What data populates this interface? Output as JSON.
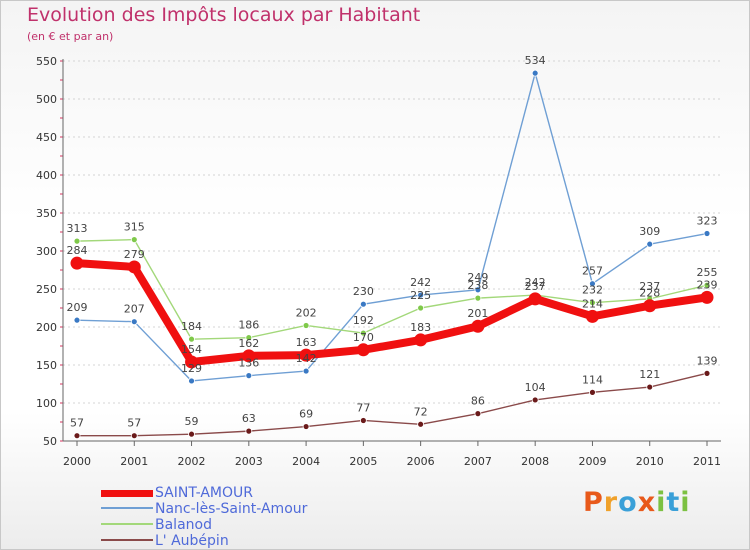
{
  "header": {
    "title": "Evolution des Impôts locaux par Habitant",
    "subtitle": "(en € et par an)"
  },
  "logo": {
    "text": "Proxiti",
    "colors": [
      "#e8591a",
      "#f0a12a",
      "#3aa0d8",
      "#e8591a",
      "#7cc142",
      "#3aa0d8",
      "#7cc142"
    ]
  },
  "chart_data": {
    "type": "line",
    "title": "Evolution des Impôts locaux par Habitant",
    "subtitle": "(en € et par an)",
    "x": [
      "2000",
      "2001",
      "2002",
      "2003",
      "2004",
      "2005",
      "2006",
      "2007",
      "2008",
      "2009",
      "2010",
      "2011"
    ],
    "ylim": [
      50,
      550
    ],
    "yticks": [
      50,
      100,
      150,
      200,
      250,
      300,
      350,
      400,
      450,
      500,
      550
    ],
    "grid": "horizontal dashed",
    "legend_position": "bottom-left",
    "series": [
      {
        "name": "Nanc-lès-Saint-Amour",
        "color": "#6f9fd4",
        "marker": "#3a79c4",
        "values": [
          209,
          207,
          129,
          136,
          142,
          230,
          242,
          249,
          534,
          257,
          309,
          323
        ],
        "labels": [
          "209",
          "207",
          "129",
          "136",
          "142",
          "230",
          "242",
          "249",
          "534",
          "257",
          "309",
          "323"
        ]
      },
      {
        "name": "Balanod",
        "color": "#a3d87a",
        "marker": "#7fc94a",
        "values": [
          313,
          315,
          184,
          186,
          202,
          192,
          225,
          238,
          242,
          232,
          237,
          255
        ],
        "labels": [
          "313",
          "315",
          "184",
          "186",
          "202",
          "192",
          "225",
          "238",
          "242",
          "232",
          "237",
          "255"
        ]
      },
      {
        "name": "L' Aubépin",
        "color": "#8a4a4a",
        "marker": "#6a1a1a",
        "values": [
          57,
          57,
          59,
          63,
          69,
          77,
          72,
          86,
          104,
          114,
          121,
          139
        ],
        "labels": [
          "57",
          "57",
          "59",
          "63",
          "69",
          "77",
          "72",
          "86",
          "104",
          "114",
          "121",
          "139"
        ]
      },
      {
        "name": "SAINT-AMOUR",
        "color": "#f01010",
        "marker": "#f01010",
        "values": [
          284,
          279,
          154,
          162,
          163,
          170,
          183,
          201,
          237,
          214,
          228,
          239
        ],
        "labels": [
          "284",
          "279",
          "154",
          "162",
          "163",
          "170",
          "183",
          "201",
          "237",
          "214",
          "228",
          "239"
        ]
      }
    ]
  },
  "legend": {
    "items": [
      {
        "label": "SAINT-AMOUR",
        "color": "#f01010",
        "weight": "thick"
      },
      {
        "label": "Nanc-lès-Saint-Amour",
        "color": "#6f9fd4",
        "weight": "thin"
      },
      {
        "label": "Balanod",
        "color": "#a3d87a",
        "weight": "thin"
      },
      {
        "label": "L' Aubépin",
        "color": "#8a4a4a",
        "weight": "thin"
      }
    ]
  }
}
